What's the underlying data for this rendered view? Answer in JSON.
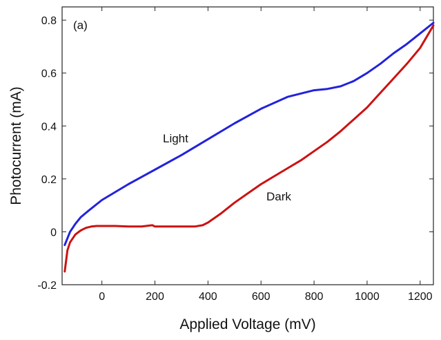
{
  "chart_data": {
    "type": "line",
    "panel_label": "(a)",
    "title": "",
    "xlabel": "Applied Voltage (mV)",
    "ylabel": "Photocurrent (mA)",
    "xlim": [
      -150,
      1250
    ],
    "ylim": [
      -0.2,
      0.85
    ],
    "xticks": [
      0,
      200,
      400,
      600,
      800,
      1000,
      1200
    ],
    "yticks": [
      -0.2,
      0,
      0.2,
      0.4,
      0.6,
      0.8
    ],
    "xtick_labels": [
      "0",
      "200",
      "400",
      "600",
      "800",
      "1000",
      "1200"
    ],
    "ytick_labels": [
      "-0.2",
      "0",
      "0.2",
      "0.4",
      "0.6",
      "0.8"
    ],
    "grid": false,
    "legend": "none",
    "series": [
      {
        "name": "Light",
        "color": "#2222dd",
        "x": [
          -140,
          -120,
          -100,
          -80,
          -50,
          0,
          100,
          200,
          300,
          400,
          500,
          600,
          700,
          800,
          850,
          900,
          950,
          1000,
          1050,
          1100,
          1150,
          1200,
          1250
        ],
        "y": [
          -0.05,
          0.0,
          0.03,
          0.055,
          0.08,
          0.12,
          0.18,
          0.235,
          0.29,
          0.35,
          0.41,
          0.465,
          0.51,
          0.535,
          0.54,
          0.55,
          0.57,
          0.6,
          0.635,
          0.675,
          0.71,
          0.75,
          0.79
        ]
      },
      {
        "name": "Dark",
        "color": "#cc1111",
        "x": [
          -140,
          -130,
          -120,
          -100,
          -80,
          -60,
          -40,
          -20,
          0,
          50,
          100,
          150,
          190,
          200,
          250,
          300,
          350,
          380,
          400,
          450,
          500,
          550,
          600,
          650,
          700,
          750,
          800,
          850,
          900,
          950,
          1000,
          1050,
          1100,
          1150,
          1200,
          1250
        ],
        "y": [
          -0.15,
          -0.07,
          -0.04,
          -0.01,
          0.005,
          0.015,
          0.02,
          0.022,
          0.022,
          0.022,
          0.02,
          0.02,
          0.025,
          0.02,
          0.02,
          0.02,
          0.02,
          0.025,
          0.035,
          0.07,
          0.11,
          0.145,
          0.18,
          0.21,
          0.24,
          0.27,
          0.305,
          0.34,
          0.38,
          0.425,
          0.47,
          0.525,
          0.58,
          0.635,
          0.695,
          0.78
        ]
      }
    ]
  }
}
